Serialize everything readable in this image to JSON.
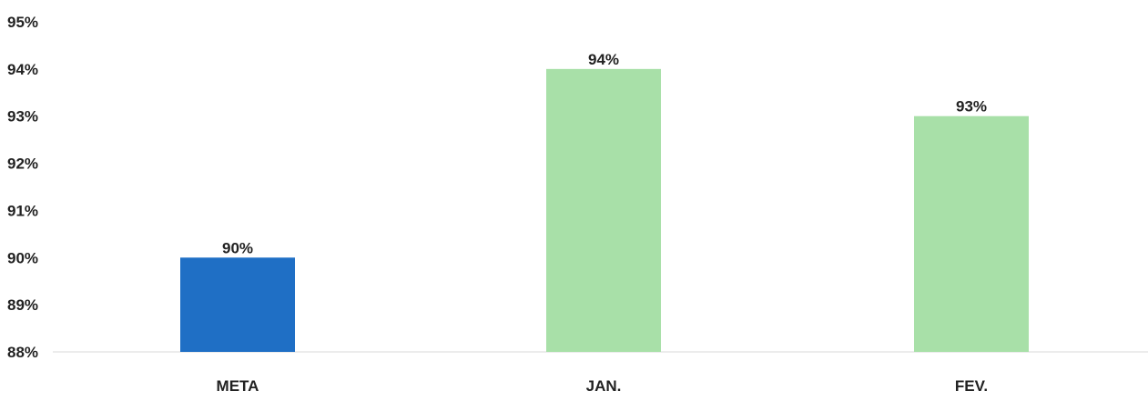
{
  "chart_data": {
    "type": "bar",
    "title": "",
    "xlabel": "",
    "ylabel": "",
    "categories": [
      "META",
      "JAN.",
      "FEV."
    ],
    "values": [
      90,
      94,
      93
    ],
    "data_labels": [
      "90%",
      "94%",
      "93%"
    ],
    "colors": [
      "#1f6fc5",
      "#a8e0a8",
      "#a8e0a8"
    ],
    "ylim": [
      88,
      95
    ],
    "y_ticks": [
      88,
      89,
      90,
      91,
      92,
      93,
      94,
      95
    ],
    "y_tick_labels": [
      "88%",
      "89%",
      "90%",
      "91%",
      "92%",
      "93%",
      "94%",
      "95%"
    ],
    "grid": false,
    "legend": "none"
  }
}
